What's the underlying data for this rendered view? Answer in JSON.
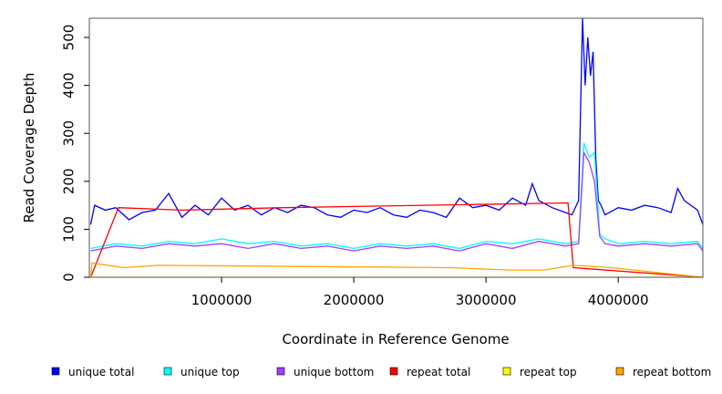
{
  "chart_data": {
    "type": "line",
    "title": "",
    "xlabel": "Coordinate in Reference Genome",
    "ylabel": "Read Coverage Depth",
    "xlim": [
      0,
      4640000
    ],
    "ylim": [
      0,
      540
    ],
    "x_ticks": [
      1000000,
      2000000,
      3000000,
      4000000
    ],
    "x_tick_labels": [
      "1000000",
      "2000000",
      "3000000",
      "4000000"
    ],
    "y_ticks": [
      0,
      100,
      200,
      300,
      400,
      500
    ],
    "y_tick_labels": [
      "0",
      "100",
      "200",
      "300",
      "400",
      "500"
    ],
    "grid": false,
    "legend_position": "bottom",
    "series": [
      {
        "name": "unique total",
        "color": "#0000ff",
        "x": [
          10000,
          40000,
          120000,
          200000,
          300000,
          400000,
          500000,
          600000,
          700000,
          800000,
          900000,
          1000000,
          1100000,
          1200000,
          1300000,
          1400000,
          1500000,
          1600000,
          1700000,
          1800000,
          1900000,
          2000000,
          2100000,
          2200000,
          2300000,
          2400000,
          2500000,
          2600000,
          2700000,
          2800000,
          2900000,
          3000000,
          3100000,
          3200000,
          3300000,
          3350000,
          3400000,
          3500000,
          3600000,
          3650000,
          3700000,
          3730000,
          3750000,
          3770000,
          3790000,
          3810000,
          3830000,
          3850000,
          3870000,
          3900000,
          4000000,
          4100000,
          4200000,
          4300000,
          4400000,
          4450000,
          4500000,
          4600000,
          4640000
        ],
        "values": [
          110,
          150,
          140,
          145,
          120,
          135,
          140,
          175,
          125,
          150,
          130,
          165,
          140,
          150,
          130,
          145,
          135,
          150,
          145,
          130,
          125,
          140,
          135,
          145,
          130,
          125,
          140,
          135,
          125,
          165,
          145,
          150,
          140,
          165,
          150,
          195,
          160,
          145,
          135,
          130,
          160,
          540,
          400,
          500,
          420,
          470,
          250,
          160,
          150,
          130,
          145,
          140,
          150,
          145,
          135,
          185,
          160,
          140,
          110
        ]
      },
      {
        "name": "unique top",
        "color": "#00ffff",
        "x": [
          10000,
          200000,
          400000,
          600000,
          800000,
          1000000,
          1200000,
          1400000,
          1600000,
          1800000,
          2000000,
          2200000,
          2400000,
          2600000,
          2800000,
          3000000,
          3200000,
          3400000,
          3600000,
          3700000,
          3740000,
          3780000,
          3820000,
          3860000,
          3900000,
          4000000,
          4200000,
          4400000,
          4600000,
          4640000
        ],
        "values": [
          60,
          70,
          65,
          75,
          70,
          80,
          70,
          75,
          65,
          70,
          60,
          70,
          65,
          70,
          60,
          75,
          70,
          80,
          70,
          75,
          280,
          250,
          260,
          90,
          80,
          70,
          75,
          70,
          75,
          60
        ]
      },
      {
        "name": "unique bottom",
        "color": "#a040ff",
        "x": [
          10000,
          200000,
          400000,
          600000,
          800000,
          1000000,
          1200000,
          1400000,
          1600000,
          1800000,
          2000000,
          2200000,
          2400000,
          2600000,
          2800000,
          3000000,
          3200000,
          3400000,
          3600000,
          3700000,
          3740000,
          3780000,
          3820000,
          3860000,
          3900000,
          4000000,
          4200000,
          4400000,
          4600000,
          4640000
        ],
        "values": [
          55,
          65,
          60,
          70,
          65,
          70,
          60,
          70,
          60,
          65,
          55,
          65,
          60,
          65,
          55,
          70,
          60,
          75,
          65,
          70,
          260,
          240,
          200,
          85,
          70,
          65,
          70,
          65,
          70,
          55
        ]
      },
      {
        "name": "repeat total",
        "color": "#ff0000",
        "x": [
          10000,
          220000,
          700000,
          1470000,
          3620000,
          3660000,
          4640000
        ],
        "values": [
          0,
          145,
          140,
          145,
          155,
          20,
          0
        ]
      },
      {
        "name": "repeat top",
        "color": "#ffff00",
        "x": [
          10000,
          4640000
        ],
        "values": [
          0,
          0
        ]
      },
      {
        "name": "repeat bottom",
        "color": "#ffa500",
        "x": [
          10000,
          20000,
          260000,
          520000,
          2740000,
          3190000,
          3440000,
          3660000,
          3950000,
          4640000
        ],
        "values": [
          0,
          30,
          20,
          25,
          20,
          15,
          15,
          25,
          20,
          0
        ]
      }
    ]
  }
}
